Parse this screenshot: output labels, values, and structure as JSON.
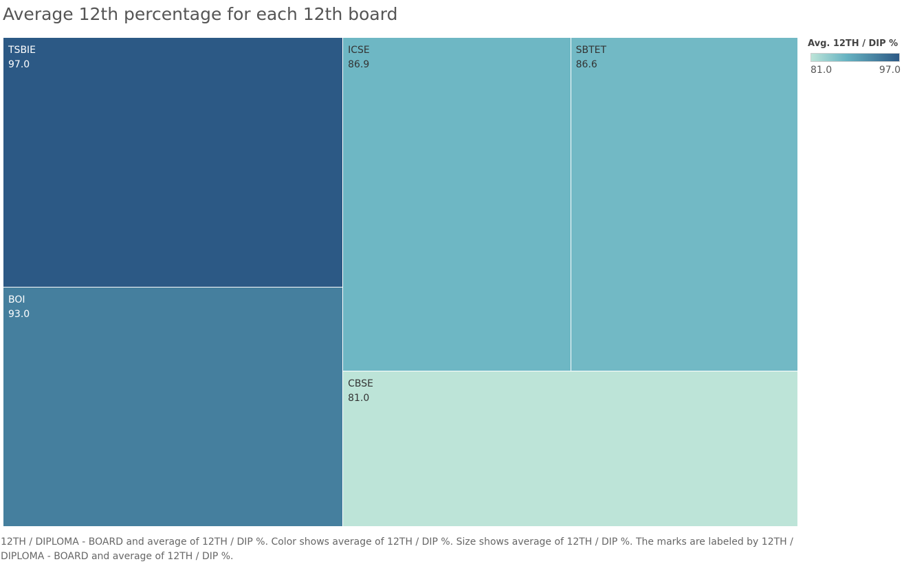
{
  "title": "Average 12th percentage for each 12th board",
  "colors": {
    "low": "#bde4d8",
    "mid": "#67b3c2",
    "high": "#2c5985",
    "text_dark": "#333333",
    "text_light": "#ffffff"
  },
  "legend": {
    "title": "Avg. 12TH  / DIP %",
    "min_label": "81.0",
    "max_label": "97.0"
  },
  "caption": "12TH / DIPLOMA - BOARD and average of 12TH  / DIP %.  Color shows average of 12TH  / DIP %.  Size shows average of 12TH  / DIP %.  The marks are labeled by 12TH / DIPLOMA - BOARD and average of 12TH  / DIP %.",
  "chart_data": {
    "type": "treemap",
    "title": "Average 12th percentage for each 12th board",
    "size_measure": "Avg. 12TH  / DIP %",
    "color_measure": "Avg. 12TH  / DIP %",
    "color_range": [
      81.0,
      97.0
    ],
    "items": [
      {
        "label": "TSBIE",
        "value": 97.0,
        "value_label": "97.0"
      },
      {
        "label": "BOI",
        "value": 93.0,
        "value_label": "93.0"
      },
      {
        "label": "ICSE",
        "value": 86.9,
        "value_label": "86.9"
      },
      {
        "label": "SBTET",
        "value": 86.6,
        "value_label": "86.6"
      },
      {
        "label": "CBSE",
        "value": 81.0,
        "value_label": "81.0"
      }
    ]
  }
}
